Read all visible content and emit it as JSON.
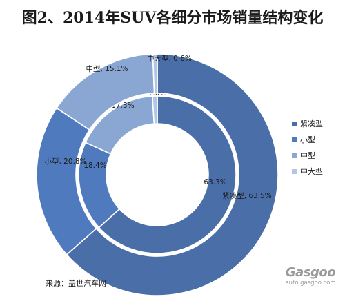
{
  "title": "图2、2014年SUV各细分市场销量结构变化",
  "source_text": "来源：盖世汽车网",
  "watermark": {
    "brand": "Gasgoo",
    "url": "auto.gasgoo.com"
  },
  "chart_data": {
    "type": "pie",
    "variant": "double-ring (inner ring and outer ring)",
    "title": "图2、2014年SUV各细分市场销量结构变化",
    "categories": [
      "紧凑型",
      "小型",
      "中型",
      "中大型"
    ],
    "colors": [
      "#4a6fa8",
      "#4f7bbe",
      "#8aa6d3",
      "#b3c6e6"
    ],
    "legend_position": "right",
    "series": [
      {
        "ring": "inner",
        "values": [
          63.3,
          18.4,
          17.3,
          1.0
        ],
        "labels": [
          "63.3%",
          "18.4%",
          "17.3%",
          "1.0%"
        ]
      },
      {
        "ring": "outer",
        "values": [
          63.5,
          20.8,
          15.1,
          0.6
        ],
        "labels": [
          "紧凑型, 63.5%",
          "小型, 20.8%",
          "中型, 15.1%",
          "中大型, 0.6%"
        ]
      }
    ]
  }
}
